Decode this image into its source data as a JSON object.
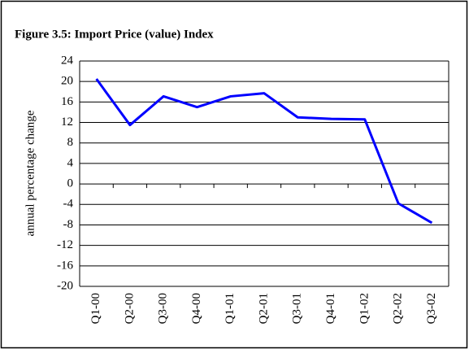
{
  "chart_data": {
    "type": "line",
    "title": "Figure 3.5: Import Price (value) Index",
    "ylabel": "annual percentage change",
    "categories": [
      "Q1-00",
      "Q2-00",
      "Q3-00",
      "Q4-00",
      "Q1-01",
      "Q2-01",
      "Q3-01",
      "Q4-01",
      "Q1-02",
      "Q2-02",
      "Q3-02"
    ],
    "series": [
      {
        "name": "Import Price (value) Index",
        "color": "#0000ff",
        "values": [
          20.5,
          11.5,
          17.1,
          15.0,
          17.1,
          17.7,
          13.0,
          12.7,
          12.6,
          -3.8,
          -7.6
        ]
      }
    ],
    "ylim": [
      -20,
      24
    ],
    "yticks": [
      -20,
      -16,
      -12,
      -8,
      -4,
      0,
      4,
      8,
      12,
      16,
      20,
      24
    ],
    "grid": true
  }
}
